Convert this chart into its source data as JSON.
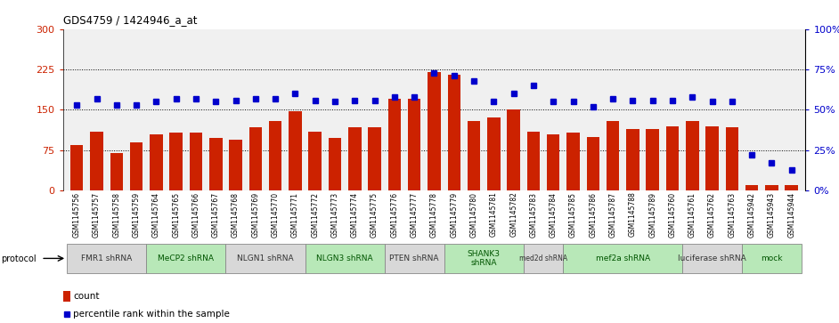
{
  "title": "GDS4759 / 1424946_a_at",
  "samples": [
    "GSM1145756",
    "GSM1145757",
    "GSM1145758",
    "GSM1145759",
    "GSM1145764",
    "GSM1145765",
    "GSM1145766",
    "GSM1145767",
    "GSM1145768",
    "GSM1145769",
    "GSM1145770",
    "GSM1145771",
    "GSM1145772",
    "GSM1145773",
    "GSM1145774",
    "GSM1145775",
    "GSM1145776",
    "GSM1145777",
    "GSM1145778",
    "GSM1145779",
    "GSM1145780",
    "GSM1145781",
    "GSM1145782",
    "GSM1145783",
    "GSM1145784",
    "GSM1145785",
    "GSM1145786",
    "GSM1145787",
    "GSM1145788",
    "GSM1145789",
    "GSM1145760",
    "GSM1145761",
    "GSM1145762",
    "GSM1145763",
    "GSM1145942",
    "GSM1145943",
    "GSM1145944"
  ],
  "bar_values": [
    85,
    110,
    70,
    90,
    105,
    108,
    108,
    97,
    95,
    118,
    130,
    148,
    110,
    98,
    118,
    118,
    170,
    170,
    220,
    215,
    130,
    135,
    150,
    110,
    105,
    108,
    100,
    130,
    115,
    115,
    120,
    130,
    120,
    118,
    10,
    10,
    10
  ],
  "dot_values_pct": [
    53,
    57,
    53,
    53,
    55,
    57,
    57,
    55,
    56,
    57,
    57,
    60,
    56,
    55,
    56,
    56,
    58,
    58,
    73,
    71,
    68,
    55,
    60,
    65,
    55,
    55,
    52,
    57,
    56,
    56,
    56,
    58,
    55,
    55,
    22,
    17,
    13
  ],
  "protocols": [
    {
      "label": "FMR1 shRNA",
      "start": 0,
      "end": 4,
      "color": "#d8d8d8"
    },
    {
      "label": "MeCP2 shRNA",
      "start": 4,
      "end": 8,
      "color": "#b8e8b8"
    },
    {
      "label": "NLGN1 shRNA",
      "start": 8,
      "end": 12,
      "color": "#d8d8d8"
    },
    {
      "label": "NLGN3 shRNA",
      "start": 12,
      "end": 16,
      "color": "#b8e8b8"
    },
    {
      "label": "PTEN shRNA",
      "start": 16,
      "end": 19,
      "color": "#d8d8d8"
    },
    {
      "label": "SHANK3\nshRNA",
      "start": 19,
      "end": 23,
      "color": "#b8e8b8"
    },
    {
      "label": "med2d shRNA",
      "start": 23,
      "end": 25,
      "color": "#d8d8d8"
    },
    {
      "label": "mef2a shRNA",
      "start": 25,
      "end": 31,
      "color": "#b8e8b8"
    },
    {
      "label": "luciferase shRNA",
      "start": 31,
      "end": 34,
      "color": "#d8d8d8"
    },
    {
      "label": "mock",
      "start": 34,
      "end": 37,
      "color": "#b8e8b8"
    }
  ],
  "bar_color": "#cc2200",
  "dot_color": "#0000cc",
  "left_ylim": [
    0,
    300
  ],
  "right_ylim": [
    0,
    100
  ],
  "left_yticks": [
    0,
    75,
    150,
    225,
    300
  ],
  "right_yticks": [
    0,
    25,
    50,
    75,
    100
  ],
  "right_yticklabels": [
    "0%",
    "25%",
    "50%",
    "75%",
    "100%"
  ],
  "hlines": [
    75,
    150,
    225
  ],
  "text_color_dark": "#333333",
  "text_color_green": "#005500"
}
